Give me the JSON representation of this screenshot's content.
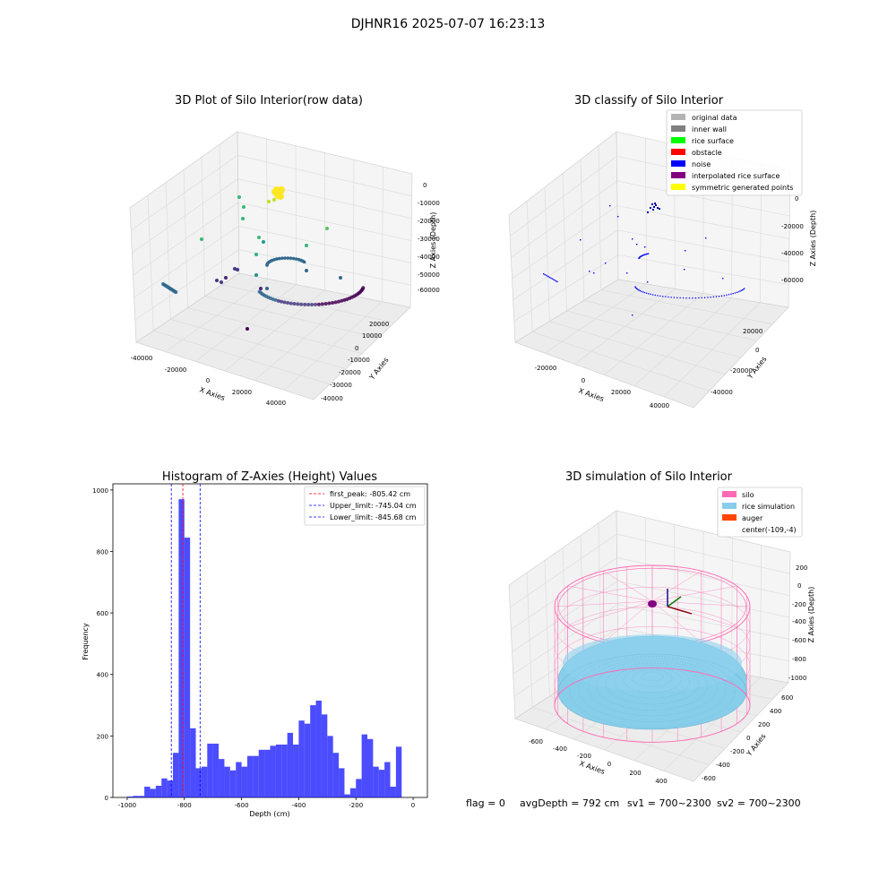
{
  "suptitle": "DJHNR16 2025-07-07 16:23:13",
  "footer": {
    "flag": "flag = 0",
    "avg_depth": "avgDepth = 792 cm",
    "sv1": "sv1 = 700~2300",
    "sv2": "sv2 = 700~2300"
  },
  "chart_data": [
    {
      "type": "scatter",
      "title": "3D Plot of Silo Interior(row data)",
      "xlabel": "X Axies",
      "ylabel": "Y Axies",
      "zlabel": "Z Axies (Depth)",
      "x_ticks": [
        "-40000",
        "-20000",
        "0",
        "20000",
        "40000"
      ],
      "y_ticks": [
        "20000",
        "10000",
        "0",
        "-10000",
        "-20000",
        "-30000",
        "-40000"
      ],
      "z_ticks": [
        "0",
        "-10000",
        "-20000",
        "-30000",
        "-40000",
        "-50000",
        "-60000"
      ],
      "colormap": [
        "#440154",
        "#31688e",
        "#35b779",
        "#fde725"
      ]
    },
    {
      "type": "scatter",
      "title": "3D classify of Silo Interior",
      "xlabel": "X Axies",
      "ylabel": "Y Axies",
      "zlabel": "Z Axies (Depth)",
      "x_ticks": [
        "-20000",
        "0",
        "20000",
        "40000"
      ],
      "y_ticks": [
        "20000",
        "0",
        "-20000",
        "-40000"
      ],
      "z_ticks": [
        "0",
        "-20000",
        "-40000",
        "-60000"
      ],
      "legend_position": "top-right",
      "legend": [
        {
          "label": "original data",
          "color": "#b3b3b3"
        },
        {
          "label": "inner wall",
          "color": "#808080"
        },
        {
          "label": "rice surface",
          "color": "#00ff00"
        },
        {
          "label": "obstacle",
          "color": "#ff0000"
        },
        {
          "label": "noise",
          "color": "#0000ff"
        },
        {
          "label": "interpolated rice surface",
          "color": "#800080"
        },
        {
          "label": "symmetric generated points",
          "color": "#ffff00"
        }
      ]
    },
    {
      "type": "bar",
      "title": "Histogram of Z-Axies (Height) Values",
      "xlabel": "Depth (cm)",
      "ylabel": "Frequency",
      "xlim": [
        -1050,
        50
      ],
      "ylim": [
        0,
        1020
      ],
      "x_ticks": [
        -1000,
        -800,
        -600,
        -400,
        -200,
        0
      ],
      "y_ticks": [
        0,
        200,
        400,
        600,
        800,
        1000
      ],
      "bar_color": "#0000ff",
      "bin_width": 20,
      "bin_starts": [
        -1000,
        -980,
        -960,
        -940,
        -920,
        -900,
        -880,
        -860,
        -840,
        -820,
        -800,
        -780,
        -760,
        -740,
        -720,
        -700,
        -680,
        -660,
        -640,
        -620,
        -600,
        -580,
        -560,
        -540,
        -520,
        -500,
        -480,
        -460,
        -440,
        -420,
        -400,
        -380,
        -360,
        -340,
        -320,
        -300,
        -280,
        -260,
        -240,
        -220,
        -200,
        -180,
        -160,
        -140,
        -120,
        -100,
        -80,
        -60,
        -40,
        -20
      ],
      "values": [
        3,
        5,
        5,
        35,
        28,
        38,
        62,
        55,
        145,
        970,
        845,
        225,
        95,
        100,
        175,
        175,
        125,
        100,
        88,
        115,
        100,
        135,
        135,
        155,
        155,
        168,
        172,
        172,
        210,
        172,
        250,
        240,
        300,
        315,
        270,
        200,
        145,
        95,
        10,
        30,
        60,
        205,
        190,
        100,
        90,
        115,
        35,
        165,
        0,
        0
      ],
      "lines": [
        {
          "label": "first_peak: -805.42 cm",
          "x": -805.42,
          "color": "#ff0000"
        },
        {
          "label": "Upper_limit: -745.04 cm",
          "x": -745.04,
          "color": "#0000ff"
        },
        {
          "label": "Lower_limit: -845.68 cm",
          "x": -845.68,
          "color": "#0000ff"
        }
      ],
      "legend_position": "top-right"
    },
    {
      "type": "scatter",
      "title": "3D simulation of Silo Interior",
      "xlabel": "X Axies",
      "ylabel": "Y Axies",
      "zlabel": "Z Axies (Depth)",
      "x_ticks": [
        "-600",
        "-400",
        "-200",
        "0",
        "200",
        "400"
      ],
      "y_ticks": [
        "600",
        "400",
        "200",
        "0",
        "-200",
        "-400",
        "-600"
      ],
      "z_ticks": [
        "200",
        "0",
        "-200",
        "-400",
        "-600",
        "-800",
        "-1000"
      ],
      "legend_position": "top-right",
      "legend": [
        {
          "label": "silo",
          "color": "#ff69b4"
        },
        {
          "label": "rice simulation",
          "color": "#87ceeb"
        },
        {
          "label": "auger",
          "color": "#ff4500"
        },
        {
          "label": "center(-109,-4)",
          "color": ""
        }
      ]
    }
  ]
}
